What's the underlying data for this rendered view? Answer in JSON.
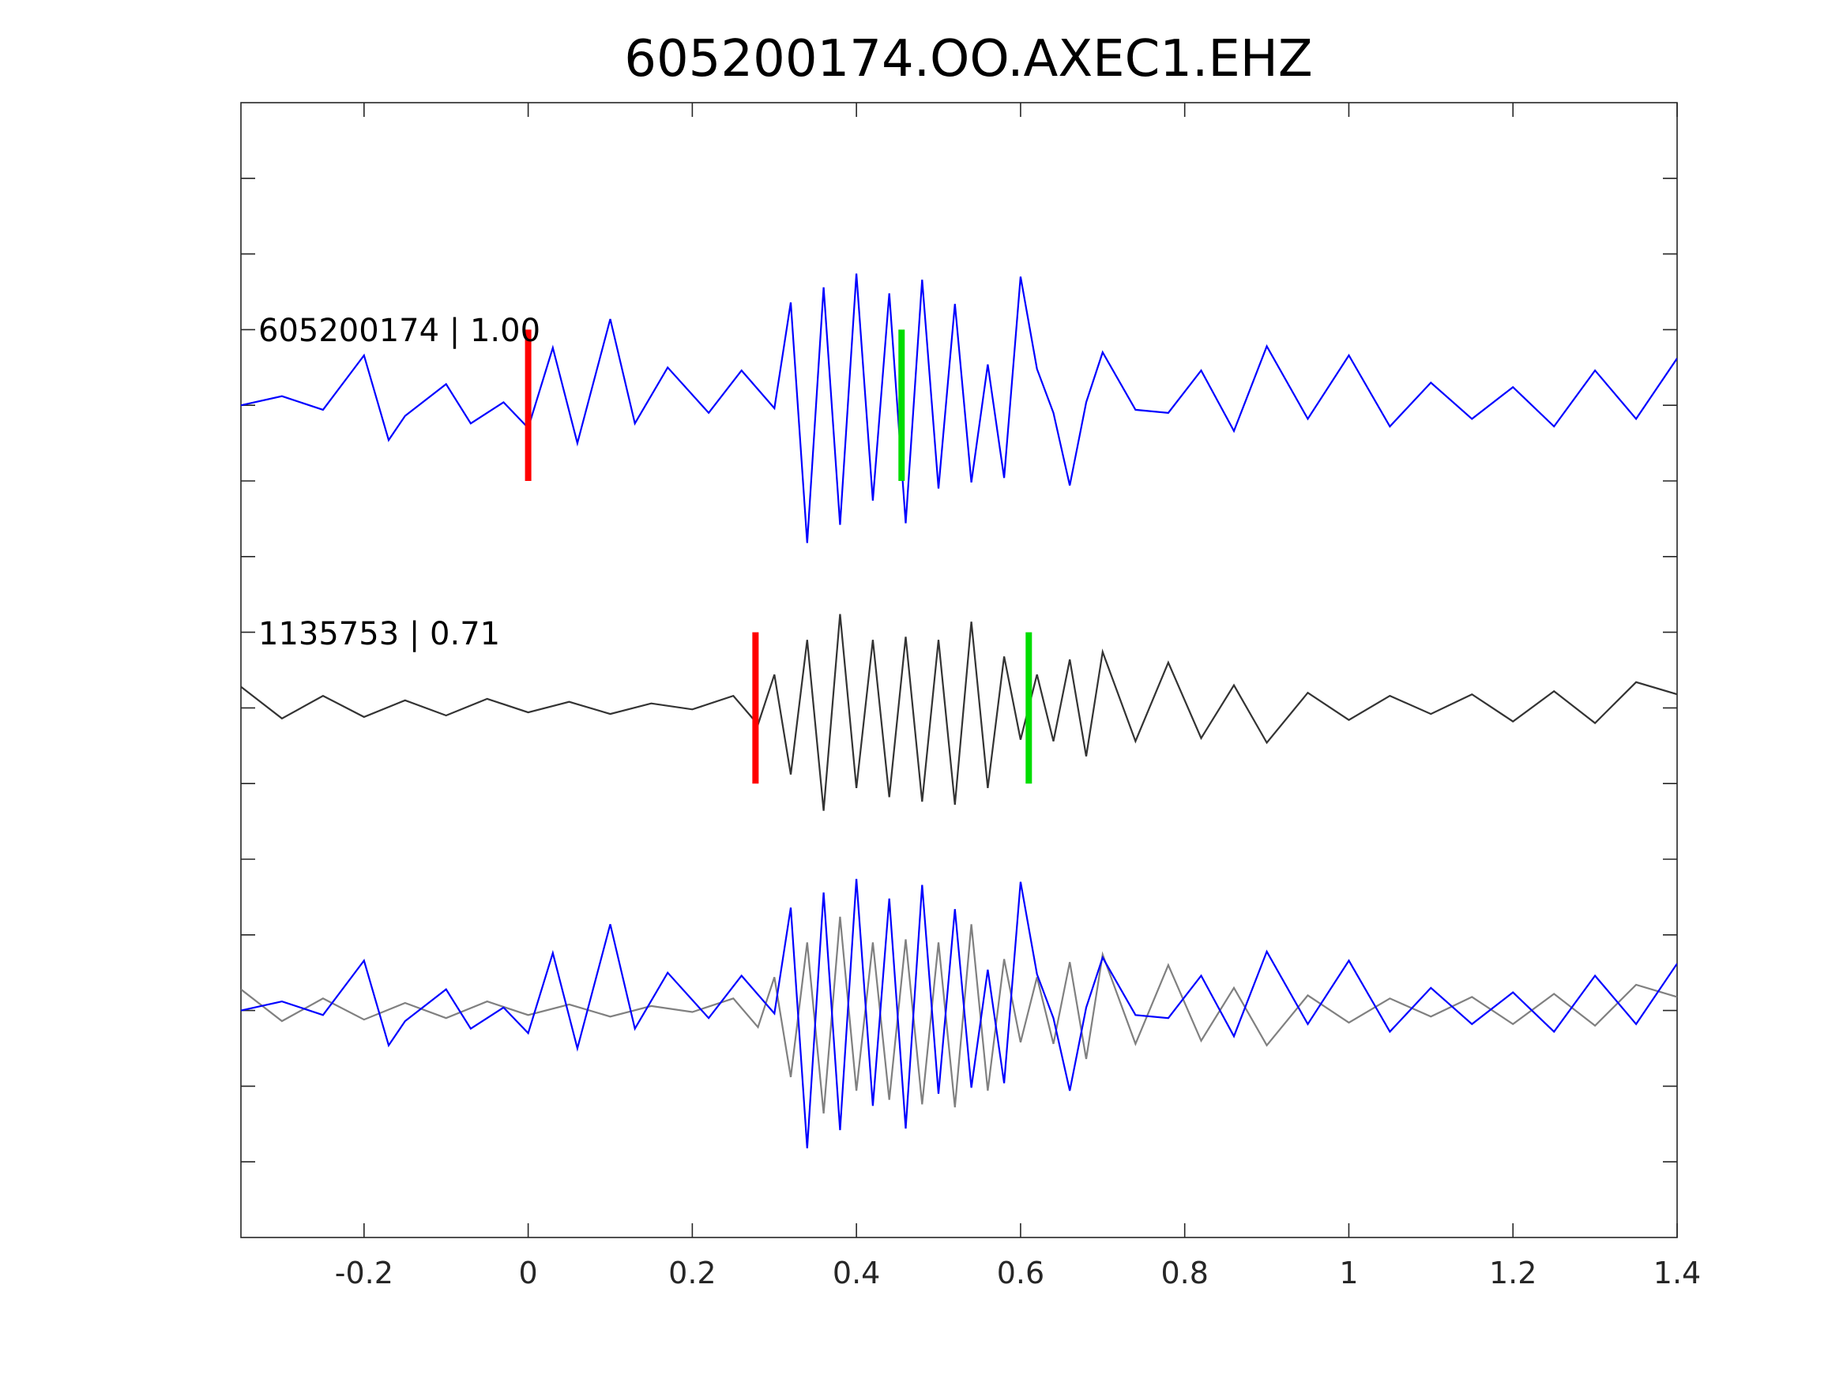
{
  "chart_data": {
    "type": "line",
    "title": "605200174.OO.AXEC1.EHZ",
    "xlabel": "",
    "ylabel": "",
    "xlim": [
      -0.35,
      1.4
    ],
    "x_ticks": [
      -0.2,
      0,
      0.2,
      0.4,
      0.6,
      0.8,
      1,
      1.2,
      1.4
    ],
    "x_tick_labels": [
      "-0.2",
      "0",
      "0.2",
      "0.4",
      "0.6",
      "0.8",
      "1",
      "1.2",
      "1.4"
    ],
    "ylim": [
      0,
      7.5
    ],
    "y_ticks": [
      0.5,
      1,
      1.5,
      2,
      2.5,
      3,
      3.5,
      4,
      4.5,
      5,
      5.5,
      6,
      6.5,
      7
    ],
    "grid": false,
    "colors": {
      "primary_trace": "#0000ff",
      "secondary_trace": "#333333",
      "overlay_secondary_trace": "#808080",
      "p_pick": "#ff0000",
      "s_pick": "#00dd00",
      "axes": "#262626"
    },
    "panels": [
      {
        "name": "605200174",
        "label": "605200174 | 1.00",
        "baseline": 5.5,
        "color": "#0000ff",
        "p_pick_time": 0.0,
        "s_pick_time": 0.455
      },
      {
        "name": "1135753",
        "label": "1135753 | 0.71",
        "baseline": 3.5,
        "color": "#333333",
        "p_pick_time": 0.277,
        "s_pick_time": 0.61
      },
      {
        "name": "overlay",
        "label": "",
        "baseline": 1.5,
        "series": [
          "605200174",
          "1135753"
        ]
      }
    ],
    "series": [
      {
        "name": "605200174",
        "x": [
          -0.35,
          -0.3,
          -0.25,
          -0.2,
          -0.17,
          -0.15,
          -0.1,
          -0.07,
          -0.03,
          0.0,
          0.03,
          0.06,
          0.1,
          0.13,
          0.17,
          0.22,
          0.26,
          0.3,
          0.32,
          0.34,
          0.36,
          0.38,
          0.4,
          0.42,
          0.44,
          0.46,
          0.48,
          0.5,
          0.52,
          0.54,
          0.56,
          0.58,
          0.6,
          0.62,
          0.64,
          0.66,
          0.68,
          0.7,
          0.74,
          0.78,
          0.82,
          0.86,
          0.9,
          0.95,
          1.0,
          1.05,
          1.1,
          1.15,
          1.2,
          1.25,
          1.3,
          1.35,
          1.4
        ],
        "y": [
          5.5,
          5.56,
          5.47,
          5.83,
          5.27,
          5.43,
          5.64,
          5.38,
          5.52,
          5.35,
          5.88,
          5.25,
          6.07,
          5.38,
          5.75,
          5.45,
          5.73,
          5.48,
          6.18,
          4.59,
          6.28,
          4.71,
          6.37,
          4.87,
          6.24,
          4.72,
          6.33,
          4.95,
          6.17,
          4.99,
          5.77,
          5.02,
          6.35,
          5.74,
          5.45,
          4.97,
          5.52,
          5.85,
          5.47,
          5.45,
          5.73,
          5.33,
          5.89,
          5.41,
          5.83,
          5.36,
          5.65,
          5.41,
          5.62,
          5.36,
          5.73,
          5.41,
          5.81
        ]
      },
      {
        "name": "1135753",
        "x": [
          -0.35,
          -0.3,
          -0.25,
          -0.2,
          -0.15,
          -0.1,
          -0.05,
          0.0,
          0.05,
          0.1,
          0.15,
          0.2,
          0.25,
          0.28,
          0.3,
          0.32,
          0.34,
          0.36,
          0.38,
          0.4,
          0.42,
          0.44,
          0.46,
          0.48,
          0.5,
          0.52,
          0.54,
          0.56,
          0.58,
          0.6,
          0.62,
          0.64,
          0.66,
          0.68,
          0.7,
          0.74,
          0.78,
          0.82,
          0.86,
          0.9,
          0.95,
          1.0,
          1.05,
          1.1,
          1.15,
          1.2,
          1.25,
          1.3,
          1.35,
          1.4
        ],
        "y": [
          3.64,
          3.43,
          3.58,
          3.44,
          3.55,
          3.45,
          3.56,
          3.47,
          3.54,
          3.46,
          3.53,
          3.49,
          3.58,
          3.39,
          3.72,
          3.06,
          3.95,
          2.82,
          4.12,
          2.97,
          3.95,
          2.91,
          3.97,
          2.88,
          3.95,
          2.86,
          4.07,
          2.97,
          3.84,
          3.29,
          3.72,
          3.28,
          3.82,
          3.18,
          3.87,
          3.28,
          3.8,
          3.3,
          3.65,
          3.27,
          3.6,
          3.42,
          3.58,
          3.46,
          3.59,
          3.41,
          3.61,
          3.4,
          3.67,
          3.59
        ]
      }
    ]
  }
}
